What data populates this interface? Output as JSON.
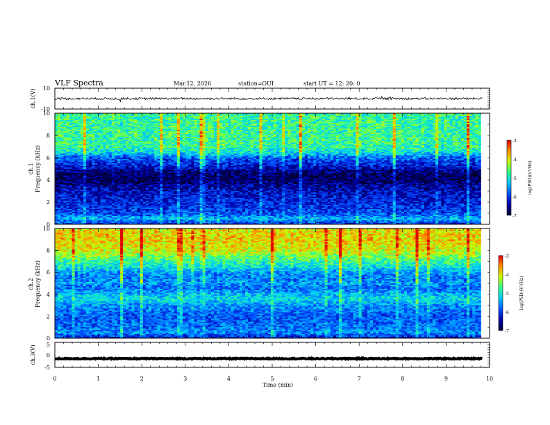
{
  "header": {
    "title": "VLF Spectra",
    "date": "Mar.12, 2026",
    "station": "station=OUI",
    "start": "start  UT =   12: 20: 0"
  },
  "colors": {
    "cmap": [
      "#000033",
      "#0000aa",
      "#0050ff",
      "#00c8ff",
      "#30ff90",
      "#c8ff00",
      "#ff9000",
      "#e00000",
      "#ffffff"
    ]
  },
  "chart_data": [
    {
      "type": "line",
      "id": "ch1-waveform",
      "ylabel": "ch.1(V)",
      "ylim": [
        -10,
        10
      ],
      "y_ticks": [
        "10",
        "-10"
      ],
      "xlim": [
        0,
        10
      ],
      "baseline": 0,
      "noise_amplitude": 1
    },
    {
      "type": "heatmap",
      "id": "ch1-spectrogram",
      "ylabel": "ch.1 Frequency (kHz)",
      "ylabel_lines": [
        "ch.1",
        "Frequency (kHz)"
      ],
      "ylim": [
        0,
        10
      ],
      "y_ticks": [
        "0",
        "2",
        "4",
        "6",
        "8",
        "10"
      ],
      "xlim": [
        0,
        9.8
      ],
      "colorbar": {
        "label": "log(PSD)(V²/Hz)",
        "range": [
          -7,
          -3
        ],
        "ticks": [
          "-3",
          "-4",
          "-5",
          "-6",
          "-7"
        ]
      },
      "z_profile": {
        "freq_khz": [
          0,
          0.5,
          1,
          2,
          3,
          3.5,
          4,
          4.5,
          5,
          5.5,
          6,
          6.5,
          7,
          8,
          9,
          10
        ],
        "log_psd": [
          -6.2,
          -5.4,
          -6.0,
          -6.2,
          -6.4,
          -6.6,
          -6.9,
          -6.8,
          -6.5,
          -6.2,
          -5.9,
          -5.2,
          -4.9,
          -4.9,
          -4.9,
          -4.9
        ]
      }
    },
    {
      "type": "heatmap",
      "id": "ch2-spectrogram",
      "ylabel": "ch.2 Frequency (kHz)",
      "ylabel_lines": [
        "ch.2",
        "Frequency (kHz)"
      ],
      "ylim": [
        0,
        10
      ],
      "y_ticks": [
        "0",
        "2",
        "4",
        "6",
        "8",
        "10"
      ],
      "xlim": [
        0,
        9.8
      ],
      "colorbar": {
        "label": "log(PSD)(V²/Hz)",
        "range": [
          -7,
          -3
        ],
        "ticks": [
          "-3",
          "-4",
          "-5",
          "-6",
          "-7"
        ]
      },
      "z_profile": {
        "freq_khz": [
          0,
          0.5,
          1,
          2,
          3,
          3.5,
          4,
          4.5,
          5,
          5.5,
          6,
          6.5,
          7,
          8,
          9,
          10
        ],
        "log_psd": [
          -6.3,
          -5.6,
          -5.8,
          -5.9,
          -5.6,
          -5.2,
          -5.4,
          -5.8,
          -5.6,
          -5.8,
          -5.6,
          -5.2,
          -4.9,
          -4.2,
          -4.0,
          -4.1
        ]
      }
    },
    {
      "type": "line",
      "id": "ch3-waveform",
      "ylabel": "ch.3(V)",
      "ylim": [
        -5,
        5
      ],
      "y_ticks": [
        "5",
        "0",
        "-5"
      ],
      "xlim": [
        0,
        10
      ],
      "baseline": -1.5,
      "noise_amplitude": 0.2
    }
  ],
  "xaxis": {
    "label": "Time (min)",
    "ticks": [
      "0",
      "1",
      "2",
      "3",
      "4",
      "5",
      "6",
      "7",
      "8",
      "9",
      "10"
    ],
    "range": [
      0,
      10
    ]
  }
}
